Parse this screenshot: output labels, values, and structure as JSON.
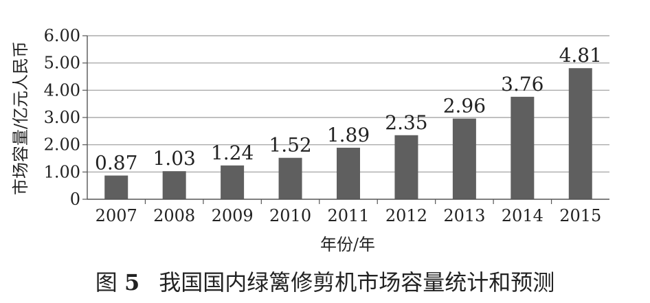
{
  "figure": {
    "label": "图",
    "number": "5",
    "caption": "我国国内绿篱修剪机市场容量统计和预测"
  },
  "chart_data": {
    "type": "bar",
    "categories": [
      "2007",
      "2008",
      "2009",
      "2010",
      "2011",
      "2012",
      "2013",
      "2014",
      "2015"
    ],
    "values": [
      0.87,
      1.03,
      1.24,
      1.52,
      1.89,
      2.35,
      2.96,
      3.76,
      4.81
    ],
    "data_labels": [
      "0.87",
      "1.03",
      "1.24",
      "1.52",
      "1.89",
      "2.35",
      "2.96",
      "3.76",
      "4.81"
    ],
    "xlabel": "年份/年",
    "ylabel": "市场容量/亿元人民币",
    "ylim": [
      0,
      6
    ],
    "yticks": [
      0,
      1,
      2,
      3,
      4,
      5,
      6
    ],
    "ytick_labels": [
      "0",
      "1.00",
      "2.00",
      "3.00",
      "4.00",
      "5.00",
      "6.00"
    ],
    "grid": true,
    "bar_color": "#5f5f5f",
    "grid_color": "#9a9a9a"
  }
}
